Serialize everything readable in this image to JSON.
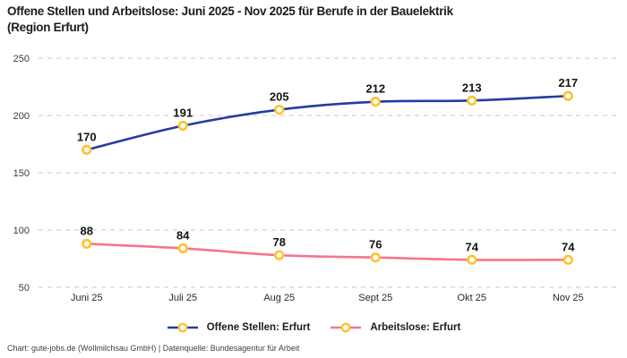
{
  "title": {
    "line1": "Offene Stellen und Arbeitslose: Juni 2025 - Nov 2025 für Berufe in der Bauelektrik",
    "line2": "(Region Erfurt)"
  },
  "footer": "Chart: gute-jobs.de (Wollmilchsau GmbH) | Datenquelle: Bundesagentur für Arbeit",
  "colors": {
    "open_positions_line": "#233d9e",
    "unemployed_line": "#f8758f",
    "marker_stroke": "#fdc330",
    "marker_fill": "#ffffff",
    "gridline": "#c9c9c9",
    "y_tick_text": "#3c3c3c",
    "x_tick_text": "#2a2a2a",
    "data_label_text": "#141414"
  },
  "chart_data": {
    "type": "line",
    "title": "Offene Stellen und Arbeitslose: Juni 2025 - Nov 2025 für Berufe in der Bauelektrik (Region Erfurt)",
    "categories": [
      "Juni 25",
      "Juli 25",
      "Aug 25",
      "Sept 25",
      "Okt 25",
      "Nov 25"
    ],
    "series": [
      {
        "name": "Offene Stellen: Erfurt",
        "values": [
          170,
          191,
          205,
          212,
          213,
          217
        ],
        "color": "#233d9e"
      },
      {
        "name": "Arbeitslose: Erfurt",
        "values": [
          88,
          84,
          78,
          76,
          74,
          74
        ],
        "color": "#f8758f"
      }
    ],
    "y_ticks": [
      50,
      100,
      150,
      200,
      250
    ],
    "ylim": [
      40,
      258
    ],
    "grid": "horizontal-dashed",
    "legend_position": "bottom",
    "marker": "open-circle-gold",
    "data_labels": "above-points"
  }
}
